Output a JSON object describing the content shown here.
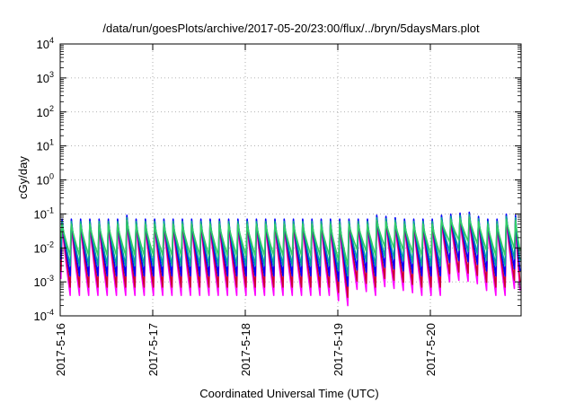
{
  "chart_data": {
    "type": "line",
    "title": "/data/run/goesPlots/archive/2017-05-20/23:00/flux/../bryn/5daysMars.plot",
    "xlabel": "Coordinated Universal Time (UTC)",
    "ylabel": "cGy/day",
    "y_scale": "log",
    "ylim": [
      0.0001,
      10000
    ],
    "xlim": [
      "2017-05-16 00:00",
      "2017-05-20 23:00"
    ],
    "grid": true,
    "y_ticks": [
      {
        "value": 0.0001,
        "label": "10",
        "exp": "-4"
      },
      {
        "value": 0.001,
        "label": "10",
        "exp": "-3"
      },
      {
        "value": 0.01,
        "label": "10",
        "exp": "-2"
      },
      {
        "value": 0.1,
        "label": "10",
        "exp": "-1"
      },
      {
        "value": 1,
        "label": "10",
        "exp": "0"
      },
      {
        "value": 10,
        "label": "10",
        "exp": "1"
      },
      {
        "value": 100,
        "label": "10",
        "exp": "2"
      },
      {
        "value": 1000,
        "label": "10",
        "exp": "3"
      },
      {
        "value": 10000,
        "label": "10",
        "exp": "4"
      }
    ],
    "x_ticks": [
      {
        "day": 0,
        "label": "2017-5-16"
      },
      {
        "day": 1,
        "label": "2017-5-17"
      },
      {
        "day": 2,
        "label": "2017-5-18"
      },
      {
        "day": 3,
        "label": "2017-5-19"
      },
      {
        "day": 4,
        "label": "2017-5-20"
      }
    ],
    "series_colors": [
      "#ff00ff",
      "#cc0033",
      "#0000ff",
      "#00a0a0",
      "#33cc66"
    ],
    "series_peak_values": [
      0.055,
      0.065,
      0.07,
      0.06,
      0.05
    ],
    "series_trough_values": [
      0.0004,
      0.0007,
      0.0015,
      0.003,
      0.006
    ],
    "peak_times_days": [
      0.02,
      0.12,
      0.22,
      0.32,
      0.42,
      0.52,
      0.62,
      0.72,
      0.82,
      0.92,
      1.02,
      1.12,
      1.22,
      1.32,
      1.42,
      1.52,
      1.62,
      1.72,
      1.82,
      1.92,
      2.02,
      2.12,
      2.22,
      2.32,
      2.42,
      2.52,
      2.62,
      2.72,
      2.82,
      2.92,
      3.02,
      3.12,
      3.22,
      3.32,
      3.42,
      3.52,
      3.62,
      3.72,
      3.82,
      3.92,
      4.02,
      4.12,
      4.22,
      4.32,
      4.42,
      4.52,
      4.62,
      4.72,
      4.82,
      4.92
    ],
    "peak_scale": [
      1,
      1,
      1,
      1,
      1,
      1,
      1,
      1.3,
      1,
      1,
      1,
      1,
      1,
      1,
      1,
      1,
      1,
      1,
      1,
      1,
      1,
      1,
      1,
      1,
      1,
      1,
      1,
      1,
      1,
      1,
      1,
      1,
      1,
      1,
      1.3,
      1.2,
      1.1,
      1,
      1,
      1,
      1,
      1.3,
      1.4,
      1.5,
      1.6,
      1.2,
      1,
      1,
      1.4,
      1.3
    ],
    "trough_scale": [
      1,
      1,
      1,
      1,
      1,
      1,
      1,
      1,
      1,
      1,
      1,
      1,
      1,
      1,
      1,
      1,
      1,
      1,
      1,
      1,
      1,
      1,
      1,
      1,
      1,
      1,
      1,
      1,
      1,
      0.7,
      0.5,
      1.5,
      1.3,
      1,
      1.8,
      1.6,
      1.4,
      1.2,
      1,
      1,
      1,
      2.5,
      2.8,
      2.6,
      2.2,
      1.4,
      1,
      1,
      1.6,
      1.4
    ],
    "peaks_per_day": 10
  }
}
